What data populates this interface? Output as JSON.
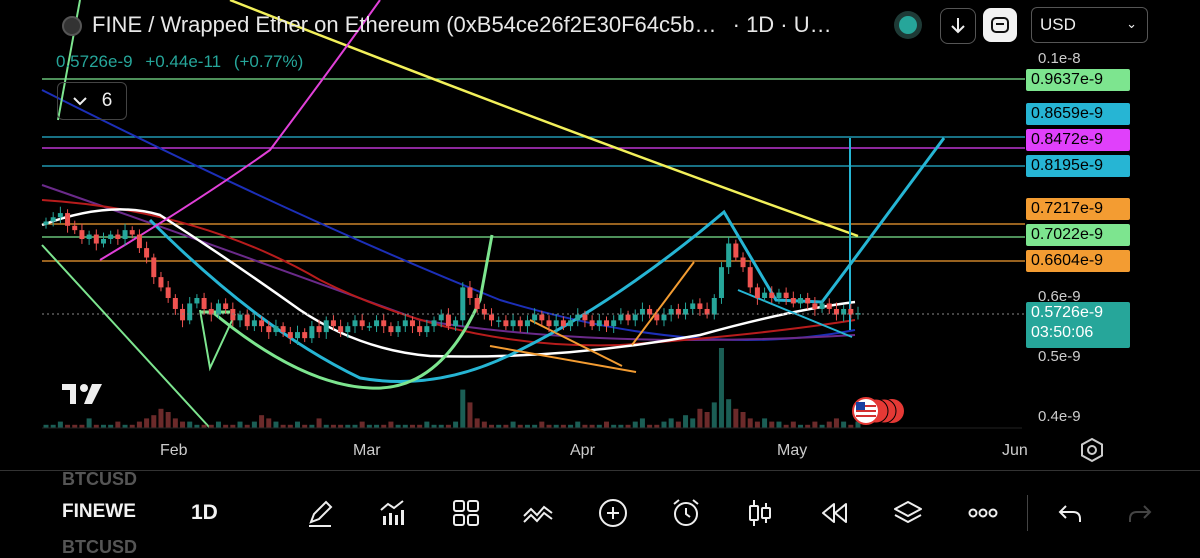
{
  "header": {
    "title": "FINE / Wrapped Ether on Ethereum (0xB54ce26f2E30F64c5b…",
    "interval_suffix": "· 1D · U…",
    "last_price": "0.5726e-9",
    "change": "+0.44e-11",
    "change_pct": "(+0.77%)",
    "currency": "USD",
    "indicator_count": "6"
  },
  "colors": {
    "up": "#26a69a",
    "down": "#ef5350",
    "yellow_ma": "#f2f05a",
    "blue_ma": "#1c2fb8",
    "red_ma": "#b71c1c",
    "purple_ma": "#6a2a8a",
    "white_ma": "#ffffff",
    "cyan_drawing": "#26b5d4",
    "orange_drawing": "#f39c32",
    "green_drawing": "#7de58f",
    "magenta_drawing": "#e040d8"
  },
  "price_tags": [
    {
      "value": "0.9637e-9",
      "color": "#7de58f"
    },
    {
      "value": "0.8659e-9",
      "color": "#26b5d4"
    },
    {
      "value": "0.8472e-9",
      "color": "#e040fb"
    },
    {
      "value": "0.8195e-9",
      "color": "#26b5d4"
    },
    {
      "value": "0.7217e-9",
      "color": "#f39c32"
    },
    {
      "value": "0.7022e-9",
      "color": "#7de58f"
    },
    {
      "value": "0.6604e-9",
      "color": "#f39c32"
    },
    {
      "value": "0.5726e-9",
      "color": "#26a69a"
    }
  ],
  "countdown": "03:50:06",
  "axis_labels": [
    "0.1e-8",
    "0.6e-9",
    "0.5e-9",
    "0.4e-9"
  ],
  "chart_data": {
    "type": "candlestick",
    "x_ticks": [
      "Feb",
      "Mar",
      "Apr",
      "May",
      "Jun"
    ],
    "y_ticks": [
      "0.4e-9",
      "0.5e-9",
      "0.6e-9",
      "0.1e-8"
    ],
    "ylim": [
      0.39,
      1.0
    ],
    "unit": "e-9",
    "horizontal_levels": [
      0.9637,
      0.8659,
      0.8472,
      0.8195,
      0.7217,
      0.7022,
      0.6604
    ],
    "last_value": 0.5726,
    "candles_note": "Daily candles from late January to mid May; price declines from ~0.78 to ~0.53 by March, ranges 0.53-0.58 through April, spikes to ~0.71 in late April and settles near 0.57.",
    "closes": [
      0.76,
      0.77,
      0.78,
      0.75,
      0.74,
      0.72,
      0.73,
      0.71,
      0.72,
      0.73,
      0.72,
      0.74,
      0.73,
      0.7,
      0.68,
      0.64,
      0.62,
      0.6,
      0.58,
      0.56,
      0.59,
      0.6,
      0.58,
      0.57,
      0.59,
      0.58,
      0.56,
      0.57,
      0.55,
      0.56,
      0.55,
      0.54,
      0.55,
      0.54,
      0.53,
      0.54,
      0.53,
      0.55,
      0.54,
      0.56,
      0.55,
      0.54,
      0.55,
      0.56,
      0.55,
      0.55,
      0.56,
      0.55,
      0.54,
      0.55,
      0.56,
      0.55,
      0.54,
      0.55,
      0.56,
      0.57,
      0.55,
      0.56,
      0.62,
      0.6,
      0.58,
      0.57,
      0.56,
      0.56,
      0.55,
      0.56,
      0.55,
      0.56,
      0.57,
      0.56,
      0.55,
      0.56,
      0.55,
      0.56,
      0.57,
      0.56,
      0.55,
      0.56,
      0.55,
      0.56,
      0.57,
      0.56,
      0.57,
      0.58,
      0.57,
      0.56,
      0.57,
      0.58,
      0.57,
      0.58,
      0.59,
      0.58,
      0.57,
      0.6,
      0.66,
      0.71,
      0.68,
      0.66,
      0.62,
      0.6,
      0.61,
      0.6,
      0.61,
      0.6,
      0.59,
      0.6,
      0.59,
      0.58,
      0.59,
      0.58,
      0.57,
      0.58,
      0.57,
      0.5726
    ],
    "volumes": [
      1,
      1,
      2,
      1,
      1,
      1,
      3,
      1,
      1,
      1,
      2,
      1,
      1,
      2,
      3,
      4,
      6,
      5,
      3,
      2,
      2,
      1,
      1,
      1,
      2,
      1,
      1,
      2,
      1,
      2,
      4,
      3,
      2,
      1,
      1,
      2,
      1,
      1,
      3,
      1,
      1,
      1,
      1,
      1,
      2,
      1,
      1,
      1,
      2,
      1,
      1,
      1,
      1,
      2,
      1,
      1,
      1,
      2,
      12,
      8,
      3,
      2,
      1,
      1,
      1,
      2,
      1,
      1,
      1,
      2,
      1,
      1,
      1,
      1,
      2,
      1,
      1,
      1,
      2,
      1,
      1,
      1,
      2,
      3,
      1,
      1,
      2,
      3,
      2,
      4,
      3,
      6,
      5,
      8,
      25,
      9,
      6,
      5,
      3,
      2,
      3,
      2,
      2,
      1,
      2,
      1,
      1,
      2,
      1,
      2,
      3,
      2,
      1,
      2
    ]
  },
  "toolbar": {
    "symbols": [
      "BTCUSD",
      "FINEWE",
      "BTCUSD"
    ],
    "timeframe": "1D"
  }
}
